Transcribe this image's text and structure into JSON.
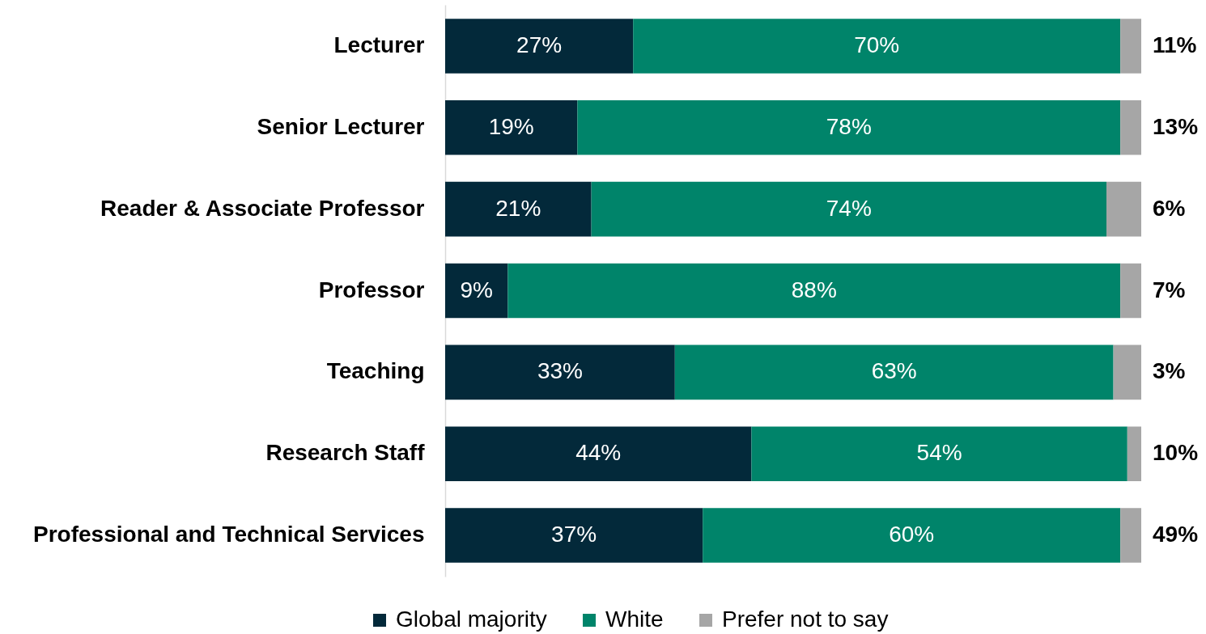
{
  "chart_data": {
    "type": "bar",
    "orientation": "horizontal",
    "stacked": true,
    "categories": [
      "Lecturer",
      "Senior Lecturer",
      "Reader & Associate Professor",
      "Professor",
      "Teaching",
      "Research Staff",
      "Professional and Technical Services"
    ],
    "series": [
      {
        "name": "Global majority",
        "color": "#03293a",
        "values": [
          27,
          19,
          21,
          9,
          33,
          44,
          37
        ],
        "value_labels": [
          "27%",
          "19%",
          "21%",
          "9%",
          "33%",
          "44%",
          "37%"
        ]
      },
      {
        "name": "White",
        "color": "#00846a",
        "values": [
          70,
          78,
          74,
          88,
          63,
          54,
          60
        ],
        "value_labels": [
          "70%",
          "78%",
          "74%",
          "88%",
          "63%",
          "54%",
          "60%"
        ]
      },
      {
        "name": "Prefer not to say",
        "color": "#a6a6a6",
        "values": [
          3,
          3,
          5,
          3,
          4,
          2,
          3
        ]
      }
    ],
    "xlim": [
      0,
      100
    ],
    "tick_labels": "y",
    "legend": "bottom",
    "annotations": [
      "11%",
      "13%",
      "6%",
      "7%",
      "3%",
      "10%",
      "49%"
    ]
  }
}
